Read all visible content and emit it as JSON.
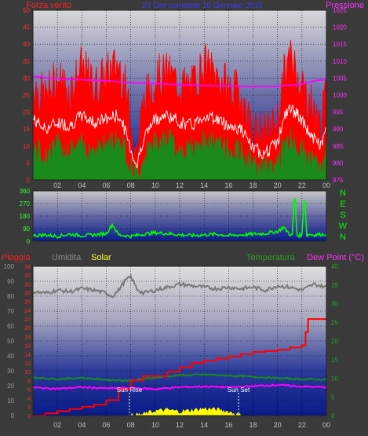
{
  "header": {
    "left_label": "Forza vento",
    "center_title": "24 Ore complete   10 Gennaio 2013",
    "right_label": "Pressione"
  },
  "colors": {
    "wind_gust": "#ff0000",
    "wind_avg": "#ffffff",
    "wind_low": "#1a8a1a",
    "pressure": "#ff00ff",
    "direction": "#00ff00",
    "humidity": "#7a7a7a",
    "temperature": "#1a8a1a",
    "rain": "#ff0000",
    "solar": "#ffff00",
    "dew_point": "#ff00ff"
  },
  "x_ticks": [
    "02",
    "04",
    "06",
    "08",
    "10",
    "12",
    "14",
    "16",
    "18",
    "20",
    "22",
    "00"
  ],
  "wind": {
    "left_ticks": [
      "0",
      "5",
      "10",
      "15",
      "20",
      "25",
      "30",
      "35",
      "40",
      "45",
      "50"
    ],
    "right_ticks": [
      "975",
      "980",
      "985",
      "990",
      "995",
      "1000",
      "1005",
      "1010",
      "1015",
      "1020",
      "1025"
    ]
  },
  "direction": {
    "ticks": [
      "0",
      "90",
      "180",
      "270",
      "360"
    ],
    "compass": [
      "N",
      "W",
      "S",
      "E",
      "N"
    ]
  },
  "bottom": {
    "labels": {
      "rain": "Pioggia",
      "humidity": "Umidita",
      "solar": "Solar",
      "temperature": "Temperatura",
      "dew_point": "Dew Point (°C)"
    },
    "humidity_ticks": [
      "0",
      "10",
      "20",
      "30",
      "40",
      "50",
      "60",
      "70",
      "80",
      "90",
      "100"
    ],
    "rain_ticks": [
      "0",
      "2",
      "4",
      "6",
      "8",
      "10",
      "12",
      "14",
      "16",
      "18",
      "20",
      "22",
      "24",
      "26",
      "28",
      "30",
      "32",
      "34"
    ],
    "temp_ticks": [
      "0",
      "5",
      "10",
      "15",
      "20",
      "25",
      "30",
      "35",
      "40"
    ],
    "sun_rise": "Sun Rise",
    "sun_set": "Sun Set"
  },
  "chart_data": [
    {
      "type": "line",
      "x_unit": "hour",
      "xlim": [
        0,
        24
      ],
      "ylim": [
        0,
        50
      ],
      "y2lim": [
        975,
        1025
      ],
      "series": [
        {
          "name": "Forza vento",
          "axis": "left",
          "kind": "gust_max",
          "x": [
            0,
            1,
            2,
            3,
            4,
            5,
            6,
            7,
            7.5,
            8,
            8.5,
            9,
            10,
            11,
            12,
            13,
            14,
            15,
            16,
            17,
            18,
            19,
            20,
            20.5,
            21,
            21.5,
            22,
            23,
            23.5,
            24
          ],
          "y": [
            28,
            24,
            30,
            26,
            33,
            27,
            31,
            34,
            28,
            16,
            8,
            22,
            30,
            31,
            28,
            27,
            34,
            30,
            27,
            25,
            14,
            13,
            17,
            30,
            36,
            33,
            28,
            20,
            15,
            25
          ]
        },
        {
          "name": "Forza vento",
          "axis": "left",
          "kind": "average",
          "x": [
            0,
            1,
            2,
            3,
            4,
            5,
            6,
            7,
            7.5,
            8,
            8.5,
            9,
            10,
            11,
            12,
            13,
            14,
            15,
            16,
            17,
            18,
            19,
            20,
            20.5,
            21,
            21.5,
            22,
            23,
            23.5,
            24
          ],
          "y": [
            18,
            15,
            17,
            16,
            19,
            17,
            18,
            19,
            15,
            9,
            4,
            12,
            18,
            19,
            17,
            16,
            19,
            18,
            16,
            15,
            9,
            8,
            11,
            18,
            21,
            20,
            17,
            12,
            10,
            15
          ]
        },
        {
          "name": "Forza vento",
          "axis": "left",
          "kind": "minimum",
          "x": [
            0,
            1,
            2,
            3,
            4,
            5,
            6,
            7,
            7.5,
            8,
            8.5,
            9,
            10,
            11,
            12,
            13,
            14,
            15,
            16,
            17,
            18,
            19,
            20,
            20.5,
            21,
            21.5,
            22,
            23,
            23.5,
            24
          ],
          "y": [
            9,
            7,
            10,
            8,
            10,
            9,
            10,
            12,
            9,
            4,
            1,
            6,
            11,
            12,
            9,
            9,
            11,
            10,
            9,
            8,
            4,
            3,
            5,
            9,
            12,
            11,
            8,
            5,
            3,
            7
          ]
        },
        {
          "name": "Pressione",
          "axis": "right",
          "x": [
            0,
            2,
            4,
            6,
            8,
            10,
            12,
            14,
            16,
            18,
            20,
            22,
            23,
            24
          ],
          "y": [
            1005.5,
            1004.8,
            1004.5,
            1004.2,
            1003.6,
            1003.4,
            1003.1,
            1002.8,
            1002.7,
            1002.5,
            1002.6,
            1003.2,
            1004.2,
            1004.6
          ]
        }
      ]
    },
    {
      "type": "line",
      "x_unit": "hour",
      "xlim": [
        0,
        24
      ],
      "ylim": [
        0,
        360
      ],
      "series": [
        {
          "name": "Direzione",
          "x": [
            0,
            1,
            2,
            3,
            4,
            5,
            6,
            6.5,
            7,
            7.5,
            8,
            9,
            10,
            11,
            12,
            13,
            14,
            15,
            16,
            17,
            18,
            19,
            20,
            20.5,
            21,
            21.2,
            21.4,
            21.6,
            22,
            22.2,
            22.4,
            22.6,
            23,
            24
          ],
          "y": [
            40,
            45,
            35,
            50,
            40,
            45,
            55,
            120,
            45,
            40,
            35,
            50,
            60,
            55,
            45,
            40,
            45,
            50,
            40,
            45,
            50,
            55,
            70,
            100,
            50,
            40,
            360,
            40,
            45,
            360,
            40,
            50,
            45,
            50
          ]
        }
      ]
    },
    {
      "type": "line",
      "x_unit": "hour",
      "xlim": [
        0,
        24
      ],
      "ylim": [
        0,
        100
      ],
      "y2lim": [
        0,
        34
      ],
      "y3lim": [
        0,
        40
      ],
      "series": [
        {
          "name": "Umidita",
          "axis": "humidity",
          "x": [
            0,
            1,
            2,
            3,
            4,
            5,
            6,
            6.5,
            7,
            7.5,
            8,
            8.5,
            9,
            10,
            11,
            12,
            13,
            14,
            15,
            16,
            17,
            18,
            19,
            20,
            21,
            22,
            23,
            24
          ],
          "y": [
            83,
            82,
            84,
            83,
            85,
            84,
            82,
            80,
            84,
            90,
            93,
            85,
            82,
            84,
            86,
            88,
            87,
            86,
            85,
            86,
            85,
            86,
            84,
            87,
            86,
            84,
            88,
            86
          ]
        },
        {
          "name": "Pioggia",
          "axis": "rain",
          "x": [
            0,
            1,
            2,
            3,
            4,
            5,
            6,
            7,
            8,
            9,
            10,
            11,
            12,
            13,
            14,
            15,
            16,
            17,
            18,
            19,
            20,
            21,
            22,
            22.3,
            22.5,
            24
          ],
          "y": [
            0,
            0.5,
            1,
            1.5,
            2,
            2.5,
            3.5,
            6,
            8,
            9,
            9,
            10,
            11,
            12,
            12.5,
            13,
            13.5,
            14,
            14.5,
            14.7,
            15,
            15.5,
            16,
            19,
            22,
            22
          ]
        },
        {
          "name": "Solar",
          "axis": "temp",
          "x": [
            0,
            8,
            9,
            10,
            11,
            12,
            13,
            14,
            15,
            16,
            17,
            24
          ],
          "y": [
            0,
            0,
            0.3,
            1.2,
            1.5,
            1,
            1.4,
            1.8,
            1.6,
            1,
            0,
            0
          ]
        },
        {
          "name": "Temperatura",
          "axis": "temp",
          "x": [
            0,
            2,
            4,
            6,
            8,
            10,
            12,
            14,
            16,
            18,
            20,
            22,
            24
          ],
          "y": [
            10.2,
            9.8,
            10.1,
            9.6,
            9.4,
            10.2,
            10.8,
            11,
            10.7,
            10.4,
            10,
            9.8,
            9.6
          ]
        },
        {
          "name": "Dew Point (°C)",
          "axis": "temp",
          "x": [
            0,
            2,
            4,
            6,
            8,
            10,
            12,
            14,
            16,
            18,
            20,
            22,
            24
          ],
          "y": [
            7.5,
            7.2,
            7.6,
            7.3,
            7.4,
            7.1,
            7.6,
            7.8,
            7.6,
            7.9,
            8.2,
            7.8,
            7.6
          ]
        }
      ]
    }
  ]
}
